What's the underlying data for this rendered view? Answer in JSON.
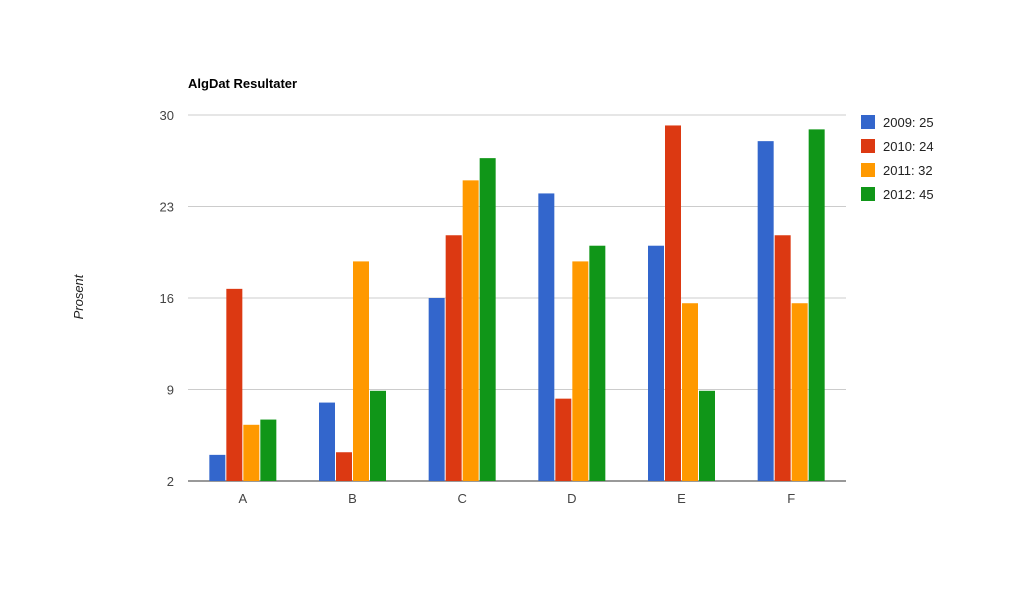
{
  "chart_data": {
    "type": "bar",
    "title": "AlgDat Resultater",
    "xlabel": "",
    "ylabel": "Prosent",
    "categories": [
      "A",
      "B",
      "C",
      "D",
      "E",
      "F"
    ],
    "yticks": [
      "2",
      "9",
      "16",
      "23",
      "30"
    ],
    "ylim": [
      2,
      30
    ],
    "grid": true,
    "legend_position": "right",
    "series": [
      {
        "name": "2009: 25",
        "color": "#3366cc",
        "values": [
          4,
          8,
          16,
          24,
          20,
          28
        ]
      },
      {
        "name": "2010: 24",
        "color": "#dc3912",
        "values": [
          16.7,
          4.2,
          20.8,
          8.3,
          29.2,
          20.8
        ]
      },
      {
        "name": "2011: 32",
        "color": "#ff9900",
        "values": [
          6.3,
          18.8,
          25,
          18.8,
          15.6,
          15.6
        ]
      },
      {
        "name": "2012: 45",
        "color": "#109618",
        "values": [
          6.7,
          8.9,
          26.7,
          20,
          8.9,
          28.9
        ]
      }
    ]
  }
}
